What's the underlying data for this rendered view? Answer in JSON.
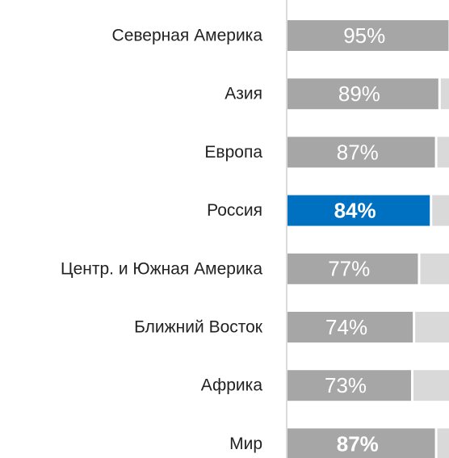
{
  "chart_data": {
    "type": "bar",
    "orientation": "horizontal",
    "categories": [
      "Северная Америка",
      "Азия",
      "Европа",
      "Россия",
      "Центр. и Южная Америка",
      "Ближний Восток",
      "Африка",
      "Мир"
    ],
    "values": [
      95,
      89,
      87,
      84,
      77,
      74,
      73,
      87
    ],
    "value_labels": [
      "95%",
      "89%",
      "87%",
      "84%",
      "77%",
      "74%",
      "73%",
      "87%"
    ],
    "colors": [
      "#a6a6a6",
      "#a6a6a6",
      "#a6a6a6",
      "#0070c0",
      "#a6a6a6",
      "#a6a6a6",
      "#a6a6a6",
      "#a6a6a6"
    ],
    "bold_labels": [
      false,
      false,
      false,
      true,
      false,
      false,
      false,
      true
    ],
    "remainder_color": "#d9d9d9",
    "xlim": [
      0,
      100
    ]
  }
}
